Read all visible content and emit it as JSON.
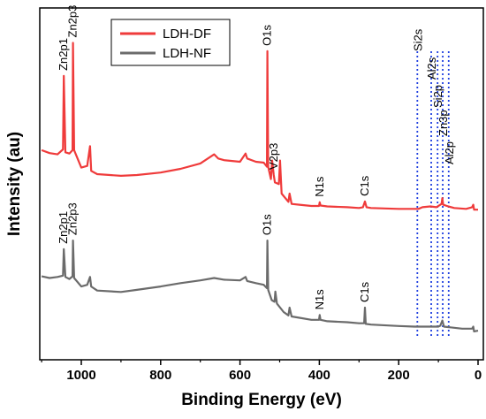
{
  "chart_data": {
    "type": "line",
    "xlabel": "Binding Energy (eV)",
    "ylabel": "Intensity (au)",
    "xlim": [
      1100,
      0
    ],
    "x_ticks": [
      1000,
      800,
      600,
      400,
      200,
      0
    ],
    "x_tick_labels": [
      "1000",
      "800",
      "600",
      "400",
      "200",
      "0"
    ],
    "y_ticks_shown": false,
    "legend": {
      "position": "top-left",
      "entries": [
        {
          "name": "LDH-DF",
          "color": "#ef3b3b"
        },
        {
          "name": "LDH-NF",
          "color": "#6b6b6b"
        }
      ]
    },
    "series": [
      {
        "name": "LDH-DF",
        "color": "#ef3b3b",
        "points": [
          [
            1100,
            150
          ],
          [
            1080,
            143
          ],
          [
            1060,
            140
          ],
          [
            1046,
            152
          ],
          [
            1044,
            330
          ],
          [
            1040,
            145
          ],
          [
            1030,
            142
          ],
          [
            1022,
            150
          ],
          [
            1021,
            410
          ],
          [
            1018,
            150
          ],
          [
            1000,
            108
          ],
          [
            985,
            112
          ],
          [
            978,
            160
          ],
          [
            975,
            100
          ],
          [
            960,
            92
          ],
          [
            900,
            88
          ],
          [
            860,
            90
          ],
          [
            800,
            96
          ],
          [
            750,
            105
          ],
          [
            700,
            118
          ],
          [
            665,
            140
          ],
          [
            655,
            130
          ],
          [
            640,
            126
          ],
          [
            600,
            122
          ],
          [
            586,
            142
          ],
          [
            582,
            130
          ],
          [
            560,
            122
          ],
          [
            540,
            120
          ],
          [
            532,
            110
          ],
          [
            531,
            390
          ],
          [
            529,
            110
          ],
          [
            522,
            80
          ],
          [
            519,
            125
          ],
          [
            515,
            90
          ],
          [
            512,
            72
          ],
          [
            502,
            68
          ],
          [
            499,
            125
          ],
          [
            495,
            45
          ],
          [
            478,
            25
          ],
          [
            475,
            45
          ],
          [
            470,
            20
          ],
          [
            450,
            18
          ],
          [
            420,
            15
          ],
          [
            401,
            15
          ],
          [
            399,
            24
          ],
          [
            397,
            16
          ],
          [
            380,
            14
          ],
          [
            330,
            12
          ],
          [
            300,
            10
          ],
          [
            290,
            12
          ],
          [
            285,
            26
          ],
          [
            281,
            12
          ],
          [
            270,
            10
          ],
          [
            200,
            8
          ],
          [
            160,
            8
          ],
          [
            150,
            8
          ],
          [
            140,
            12
          ],
          [
            120,
            14
          ],
          [
            105,
            12
          ],
          [
            92,
            20
          ],
          [
            90,
            34
          ],
          [
            88,
            18
          ],
          [
            75,
            14
          ],
          [
            60,
            10
          ],
          [
            30,
            8
          ],
          [
            15,
            12
          ],
          [
            12,
            18
          ],
          [
            10,
            6
          ],
          [
            0,
            6
          ]
        ]
      },
      {
        "name": "LDH-NF",
        "color": "#6b6b6b",
        "points": [
          [
            1100,
            170
          ],
          [
            1080,
            165
          ],
          [
            1060,
            168
          ],
          [
            1046,
            172
          ],
          [
            1044,
            250
          ],
          [
            1040,
            168
          ],
          [
            1030,
            162
          ],
          [
            1022,
            170
          ],
          [
            1021,
            275
          ],
          [
            1018,
            165
          ],
          [
            1000,
            140
          ],
          [
            985,
            145
          ],
          [
            978,
            168
          ],
          [
            975,
            140
          ],
          [
            960,
            128
          ],
          [
            900,
            124
          ],
          [
            860,
            130
          ],
          [
            800,
            140
          ],
          [
            750,
            150
          ],
          [
            700,
            158
          ],
          [
            665,
            165
          ],
          [
            640,
            160
          ],
          [
            600,
            158
          ],
          [
            586,
            168
          ],
          [
            582,
            156
          ],
          [
            560,
            150
          ],
          [
            540,
            145
          ],
          [
            532,
            135
          ],
          [
            531,
            275
          ],
          [
            529,
            130
          ],
          [
            520,
            100
          ],
          [
            513,
            95
          ],
          [
            511,
            125
          ],
          [
            507,
            90
          ],
          [
            490,
            65
          ],
          [
            478,
            55
          ],
          [
            475,
            78
          ],
          [
            470,
            52
          ],
          [
            450,
            48
          ],
          [
            420,
            42
          ],
          [
            401,
            42
          ],
          [
            399,
            56
          ],
          [
            397,
            42
          ],
          [
            380,
            38
          ],
          [
            330,
            35
          ],
          [
            300,
            32
          ],
          [
            287,
            32
          ],
          [
            285,
            78
          ],
          [
            283,
            30
          ],
          [
            270,
            28
          ],
          [
            200,
            24
          ],
          [
            160,
            22
          ],
          [
            150,
            22
          ],
          [
            120,
            22
          ],
          [
            100,
            22
          ],
          [
            95,
            25
          ],
          [
            90,
            40
          ],
          [
            86,
            22
          ],
          [
            70,
            20
          ],
          [
            40,
            16
          ],
          [
            15,
            16
          ],
          [
            12,
            22
          ],
          [
            10,
            8
          ],
          [
            0,
            10
          ]
        ]
      }
    ],
    "peak_labels": [
      {
        "text": "Zn2p1",
        "series": "LDH-DF",
        "x": 1044
      },
      {
        "text": "Zn2p3",
        "series": "LDH-DF",
        "x": 1021
      },
      {
        "text": "O1s",
        "series": "LDH-DF",
        "x": 531
      },
      {
        "text": "V2p3",
        "series": "LDH-DF",
        "x": 515
      },
      {
        "text": "N1s",
        "series": "LDH-DF",
        "x": 399
      },
      {
        "text": "C1s",
        "series": "LDH-DF",
        "x": 285
      },
      {
        "text": "Si2s",
        "series": "LDH-DF",
        "x": 153
      },
      {
        "text": "Al2s",
        "series": "LDH-DF",
        "x": 118
      },
      {
        "text": "Si2p",
        "series": "LDH-DF",
        "x": 102
      },
      {
        "text": "Zn3p",
        "series": "LDH-DF",
        "x": 89
      },
      {
        "text": "Al2p",
        "series": "LDH-DF",
        "x": 74
      },
      {
        "text": "Zn2p1",
        "series": "LDH-NF",
        "x": 1044
      },
      {
        "text": "Zn2p3",
        "series": "LDH-NF",
        "x": 1021
      },
      {
        "text": "O1s",
        "series": "LDH-NF",
        "x": 531
      },
      {
        "text": "N1s",
        "series": "LDH-NF",
        "x": 399
      },
      {
        "text": "C1s",
        "series": "LDH-NF",
        "x": 285
      }
    ],
    "reference_lines": {
      "style": "dotted",
      "color": "#1f3fe0",
      "x": [
        153,
        118,
        102,
        89,
        74
      ]
    }
  }
}
